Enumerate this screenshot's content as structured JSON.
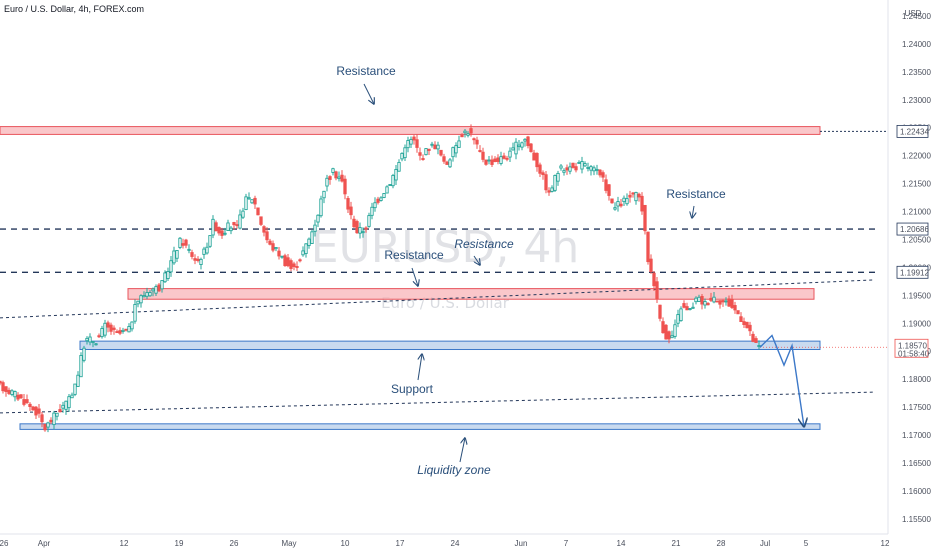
{
  "header": {
    "symbol_title": "Euro / U.S. Dollar, 4h, FOREX.com"
  },
  "watermark": {
    "symbol": "EURUSD, 4h",
    "name": "Euro / U.S. Dollar"
  },
  "chart_data": {
    "type": "candlestick",
    "title": "Euro / U.S. Dollar, 4h, FOREX.com",
    "price_axis": {
      "currency": "USD",
      "ylim": [
        1.1555,
        1.2475
      ],
      "ticks": [
        "1.24500",
        "1.24000",
        "1.23500",
        "1.23000",
        "1.22500",
        "1.22000",
        "1.21500",
        "1.21000",
        "1.20500",
        "1.20000",
        "1.19500",
        "1.19000",
        "1.18500",
        "1.18000",
        "1.17500",
        "1.17000",
        "1.16500",
        "1.16000",
        "1.15500"
      ],
      "price_labels": [
        {
          "text": "1.22434",
          "value": 1.22434
        },
        {
          "text": "1.20686",
          "value": 1.20686
        },
        {
          "text": "1.19912",
          "value": 1.19912
        }
      ],
      "current_price": {
        "value": 1.1857,
        "text": "1.18570",
        "countdown": "01:58:40"
      }
    },
    "time_axis": {
      "ticks": [
        "26",
        "Apr",
        "12",
        "19",
        "26",
        "May",
        "10",
        "17",
        "24",
        "Jun",
        "7",
        "14",
        "21",
        "28",
        "Jul",
        "5",
        "12"
      ]
    },
    "colors": {
      "up": "#26a69a",
      "down": "#ef5350",
      "candle_body_up": "#ffffff",
      "zone_red": "#f8b4b8",
      "zone_blue": "#b7cde9",
      "annotation": "#2a4f7a",
      "current_price": "#ef5350"
    },
    "price_path": [
      {
        "t": 0,
        "p": 1.179
      },
      {
        "t": 8,
        "p": 1.1775
      },
      {
        "t": 14,
        "p": 1.176
      },
      {
        "t": 20,
        "p": 1.174
      },
      {
        "t": 24,
        "p": 1.1712
      },
      {
        "t": 30,
        "p": 1.174
      },
      {
        "t": 36,
        "p": 1.1762
      },
      {
        "t": 40,
        "p": 1.1802
      },
      {
        "t": 44,
        "p": 1.187
      },
      {
        "t": 50,
        "p": 1.187
      },
      {
        "t": 54,
        "p": 1.1895
      },
      {
        "t": 60,
        "p": 1.188
      },
      {
        "t": 66,
        "p": 1.1888
      },
      {
        "t": 70,
        "p": 1.194
      },
      {
        "t": 76,
        "p": 1.196
      },
      {
        "t": 82,
        "p": 1.1965
      },
      {
        "t": 88,
        "p": 1.202
      },
      {
        "t": 92,
        "p": 1.205
      },
      {
        "t": 96,
        "p": 1.203
      },
      {
        "t": 100,
        "p": 1.201
      },
      {
        "t": 104,
        "p": 1.203
      },
      {
        "t": 108,
        "p": 1.208
      },
      {
        "t": 112,
        "p": 1.206
      },
      {
        "t": 116,
        "p": 1.2075
      },
      {
        "t": 120,
        "p": 1.207
      },
      {
        "t": 124,
        "p": 1.212
      },
      {
        "t": 128,
        "p": 1.2125
      },
      {
        "t": 132,
        "p": 1.208
      },
      {
        "t": 136,
        "p": 1.204
      },
      {
        "t": 140,
        "p": 1.203
      },
      {
        "t": 144,
        "p": 1.201
      },
      {
        "t": 148,
        "p": 1.1995
      },
      {
        "t": 152,
        "p": 1.202
      },
      {
        "t": 156,
        "p": 1.205
      },
      {
        "t": 160,
        "p": 1.209
      },
      {
        "t": 164,
        "p": 1.215
      },
      {
        "t": 168,
        "p": 1.217
      },
      {
        "t": 172,
        "p": 1.216
      },
      {
        "t": 176,
        "p": 1.21
      },
      {
        "t": 180,
        "p": 1.2065
      },
      {
        "t": 184,
        "p": 1.2068
      },
      {
        "t": 188,
        "p": 1.211
      },
      {
        "t": 192,
        "p": 1.213
      },
      {
        "t": 196,
        "p": 1.215
      },
      {
        "t": 200,
        "p": 1.2178
      },
      {
        "t": 204,
        "p": 1.222
      },
      {
        "t": 208,
        "p": 1.223
      },
      {
        "t": 212,
        "p": 1.2195
      },
      {
        "t": 216,
        "p": 1.2215
      },
      {
        "t": 220,
        "p": 1.222
      },
      {
        "t": 224,
        "p": 1.218
      },
      {
        "t": 228,
        "p": 1.2208
      },
      {
        "t": 232,
        "p": 1.224
      },
      {
        "t": 236,
        "p": 1.2245
      },
      {
        "t": 240,
        "p": 1.2215
      },
      {
        "t": 244,
        "p": 1.219
      },
      {
        "t": 248,
        "p": 1.219
      },
      {
        "t": 252,
        "p": 1.2195
      },
      {
        "t": 256,
        "p": 1.22
      },
      {
        "t": 260,
        "p": 1.222
      },
      {
        "t": 264,
        "p": 1.223
      },
      {
        "t": 268,
        "p": 1.22
      },
      {
        "t": 272,
        "p": 1.217
      },
      {
        "t": 276,
        "p": 1.213
      },
      {
        "t": 280,
        "p": 1.217
      },
      {
        "t": 284,
        "p": 1.218
      },
      {
        "t": 288,
        "p": 1.2178
      },
      {
        "t": 292,
        "p": 1.2185
      },
      {
        "t": 296,
        "p": 1.218
      },
      {
        "t": 300,
        "p": 1.217
      },
      {
        "t": 304,
        "p": 1.215
      },
      {
        "t": 308,
        "p": 1.2105
      },
      {
        "t": 312,
        "p": 1.2115
      },
      {
        "t": 316,
        "p": 1.2125
      },
      {
        "t": 320,
        "p": 1.2128
      },
      {
        "t": 322,
        "p": 1.212
      },
      {
        "t": 326,
        "p": 1.2
      },
      {
        "t": 328,
        "p": 1.1985
      },
      {
        "t": 330,
        "p": 1.194
      },
      {
        "t": 332,
        "p": 1.19
      },
      {
        "t": 334,
        "p": 1.188
      },
      {
        "t": 336,
        "p": 1.187
      },
      {
        "t": 338,
        "p": 1.188
      },
      {
        "t": 340,
        "p": 1.1905
      },
      {
        "t": 342,
        "p": 1.193
      },
      {
        "t": 346,
        "p": 1.192
      },
      {
        "t": 350,
        "p": 1.1945
      },
      {
        "t": 354,
        "p": 1.1935
      },
      {
        "t": 358,
        "p": 1.1948
      },
      {
        "t": 362,
        "p": 1.194
      },
      {
        "t": 366,
        "p": 1.1935
      },
      {
        "t": 370,
        "p": 1.192
      },
      {
        "t": 374,
        "p": 1.19
      },
      {
        "t": 378,
        "p": 1.187
      },
      {
        "t": 380,
        "p": 1.1857
      }
    ],
    "zones": [
      {
        "name": "resistance-top",
        "color": "red",
        "from_t": -300,
        "to_t": 410,
        "low": 1.2238,
        "high": 1.2252
      },
      {
        "name": "resistance-mid",
        "color": "red",
        "from_t": 64,
        "to_t": 407,
        "low": 1.1943,
        "high": 1.1962
      },
      {
        "name": "support",
        "color": "blue",
        "from_t": 40,
        "to_t": 410,
        "low": 1.1853,
        "high": 1.1868
      },
      {
        "name": "liquidity-zone",
        "color": "blue",
        "from_t": 10,
        "to_t": 410,
        "low": 1.171,
        "high": 1.172
      }
    ],
    "level_lines": [
      {
        "value": 1.20686,
        "from_t": -300,
        "to_t": 440
      },
      {
        "value": 1.19912,
        "from_t": -300,
        "to_t": 440
      }
    ],
    "trend_lines": [
      {
        "from": {
          "t": -300,
          "p": 1.1863
        },
        "to": {
          "t": 440,
          "p": 1.1978
        }
      },
      {
        "from": {
          "t": -300,
          "p": 1.1714
        },
        "to": {
          "t": 440,
          "p": 1.1777
        }
      }
    ],
    "projection": [
      {
        "t": 380,
        "p": 1.1857
      },
      {
        "t": 386,
        "p": 1.1878
      },
      {
        "t": 392,
        "p": 1.1825
      },
      {
        "t": 396,
        "p": 1.186
      },
      {
        "t": 402,
        "p": 1.1715
      }
    ],
    "annotations": [
      {
        "text": "Resistance",
        "style": "normal",
        "target": "resistance-top"
      },
      {
        "text": "Resistance",
        "style": "normal",
        "target": "resistance-1.20686"
      },
      {
        "text": "Resistance",
        "style": "italic",
        "target": "resistance-1.19912"
      },
      {
        "text": "Resistance",
        "style": "normal",
        "target": "resistance-mid"
      },
      {
        "text": "Support",
        "style": "normal",
        "target": "support"
      },
      {
        "text": "Liquidity zone",
        "style": "italic",
        "target": "liquidity-zone"
      }
    ]
  }
}
